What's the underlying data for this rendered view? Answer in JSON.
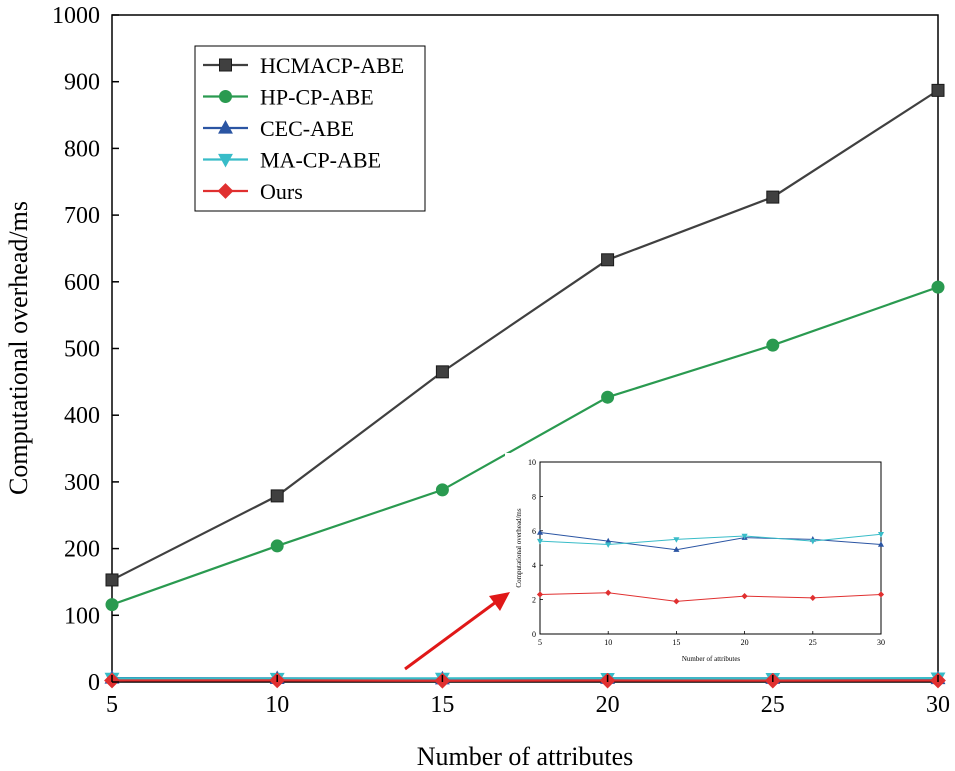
{
  "chart_data": [
    {
      "type": "line",
      "name": "main",
      "title": "",
      "xlabel": "Number of attributes",
      "ylabel": "Computational overhead/ms",
      "x": [
        5,
        10,
        15,
        20,
        25,
        30
      ],
      "xlim": [
        5,
        30
      ],
      "ylim": [
        0,
        1000
      ],
      "xticks": [
        "5",
        "10",
        "15",
        "20",
        "25",
        "30"
      ],
      "yticks": [
        "0",
        "100",
        "200",
        "300",
        "400",
        "500",
        "600",
        "700",
        "800",
        "900",
        "1000"
      ],
      "legend_position": "top-left",
      "grid": false,
      "series": [
        {
          "name": "HCMACP-ABE",
          "color": "#404040",
          "marker": "square",
          "values": [
            153,
            279,
            465,
            633,
            727,
            887
          ]
        },
        {
          "name": "HP-CP-ABE",
          "color": "#2a9a50",
          "marker": "circle",
          "values": [
            116,
            204,
            288,
            427,
            505,
            592
          ]
        },
        {
          "name": "CEC-ABE",
          "color": "#2b55a3",
          "marker": "triangle-up",
          "values": [
            5.9,
            5.4,
            4.9,
            5.6,
            5.5,
            5.2
          ]
        },
        {
          "name": "MA-CP-ABE",
          "color": "#38bcc8",
          "marker": "triangle-down",
          "values": [
            5.4,
            5.2,
            5.5,
            5.7,
            5.4,
            5.8
          ]
        },
        {
          "name": "Ours",
          "color": "#e03030",
          "marker": "diamond",
          "values": [
            2.3,
            2.4,
            1.9,
            2.2,
            2.1,
            2.3
          ]
        }
      ]
    },
    {
      "type": "line",
      "name": "inset",
      "title": "",
      "xlabel": "Number of attributes",
      "ylabel": "Computational overhead/ms",
      "x": [
        5,
        10,
        15,
        20,
        25,
        30
      ],
      "xlim": [
        5,
        30
      ],
      "ylim": [
        0,
        10
      ],
      "xticks": [
        "5",
        "10",
        "15",
        "20",
        "25",
        "30"
      ],
      "yticks": [
        "0",
        "2",
        "4",
        "6",
        "8",
        "10"
      ],
      "series": [
        {
          "name": "CEC-ABE",
          "color": "#2b55a3",
          "marker": "triangle-up",
          "values": [
            5.9,
            5.4,
            4.9,
            5.6,
            5.5,
            5.2
          ]
        },
        {
          "name": "MA-CP-ABE",
          "color": "#38bcc8",
          "marker": "triangle-down",
          "values": [
            5.4,
            5.2,
            5.5,
            5.7,
            5.4,
            5.8
          ]
        },
        {
          "name": "Ours",
          "color": "#e03030",
          "marker": "diamond",
          "values": [
            2.3,
            2.4,
            1.9,
            2.2,
            2.1,
            2.3
          ]
        }
      ]
    }
  ],
  "annotation": {
    "arrow_color": "#e01818"
  }
}
